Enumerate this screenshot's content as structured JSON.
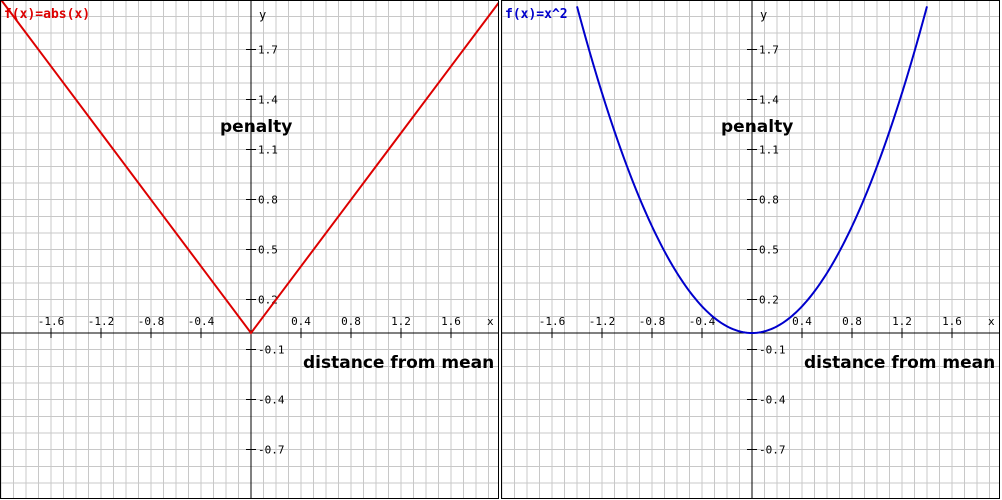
{
  "chart_data": [
    {
      "type": "line",
      "title": "f(x)=abs(x)",
      "xlabel": "distance from mean",
      "ylabel": "penalty",
      "axis_x_name": "x",
      "axis_y_name": "y",
      "xlim": [
        -2,
        2
      ],
      "ylim": [
        -0.7,
        1.9
      ],
      "x_ticks": [
        -1.6,
        -1.2,
        -0.8,
        -0.4,
        0.4,
        0.8,
        1.2,
        1.6
      ],
      "x_tick_labels": [
        "-1.6",
        "-1.2",
        "-0.8",
        "-0.4",
        "0.4",
        "0.8",
        "1.2",
        "1.6"
      ],
      "y_ticks": [
        1.7,
        1.4,
        1.1,
        0.8,
        0.5,
        0.2,
        -0.1,
        -0.4,
        -0.7
      ],
      "y_tick_labels": [
        "1.7",
        "1.4",
        "1.1",
        "0.8",
        "0.5",
        "0.2",
        "-0.1",
        "-0.4",
        "-0.7"
      ],
      "grid": true,
      "color": "#dd0000",
      "series": [
        {
          "x": [
            -2,
            -1.6,
            -1.2,
            -0.8,
            -0.4,
            0,
            0.4,
            0.8,
            1.2,
            1.6,
            2
          ],
          "y": [
            2,
            1.6,
            1.2,
            0.8,
            0.4,
            0,
            0.4,
            0.8,
            1.2,
            1.6,
            2
          ]
        }
      ]
    },
    {
      "type": "line",
      "title": "f(x)=x^2",
      "xlabel": "distance from mean",
      "ylabel": "penalty",
      "axis_x_name": "x",
      "axis_y_name": "y",
      "xlim": [
        -2,
        2
      ],
      "ylim": [
        -0.7,
        1.9
      ],
      "x_ticks": [
        -1.6,
        -1.2,
        -0.8,
        -0.4,
        0.4,
        0.8,
        1.2,
        1.6
      ],
      "x_tick_labels": [
        "-1.6",
        "-1.2",
        "-0.8",
        "-0.4",
        "0.4",
        "0.8",
        "1.2",
        "1.6"
      ],
      "y_ticks": [
        1.7,
        1.4,
        1.1,
        0.8,
        0.5,
        0.2,
        -0.1,
        -0.4,
        -0.7
      ],
      "y_tick_labels": [
        "1.7",
        "1.4",
        "1.1",
        "0.8",
        "0.5",
        "0.2",
        "-0.1",
        "-0.4",
        "-0.7"
      ],
      "grid": true,
      "color": "#0000cc",
      "series": [
        {
          "x": [
            -1.4,
            -1.2,
            -1.0,
            -0.8,
            -0.6,
            -0.4,
            -0.2,
            0,
            0.2,
            0.4,
            0.6,
            0.8,
            1.0,
            1.2,
            1.4
          ],
          "y": [
            1.96,
            1.44,
            1.0,
            0.64,
            0.36,
            0.16,
            0.04,
            0,
            0.04,
            0.16,
            0.36,
            0.64,
            1.0,
            1.44,
            1.96
          ]
        }
      ]
    }
  ]
}
